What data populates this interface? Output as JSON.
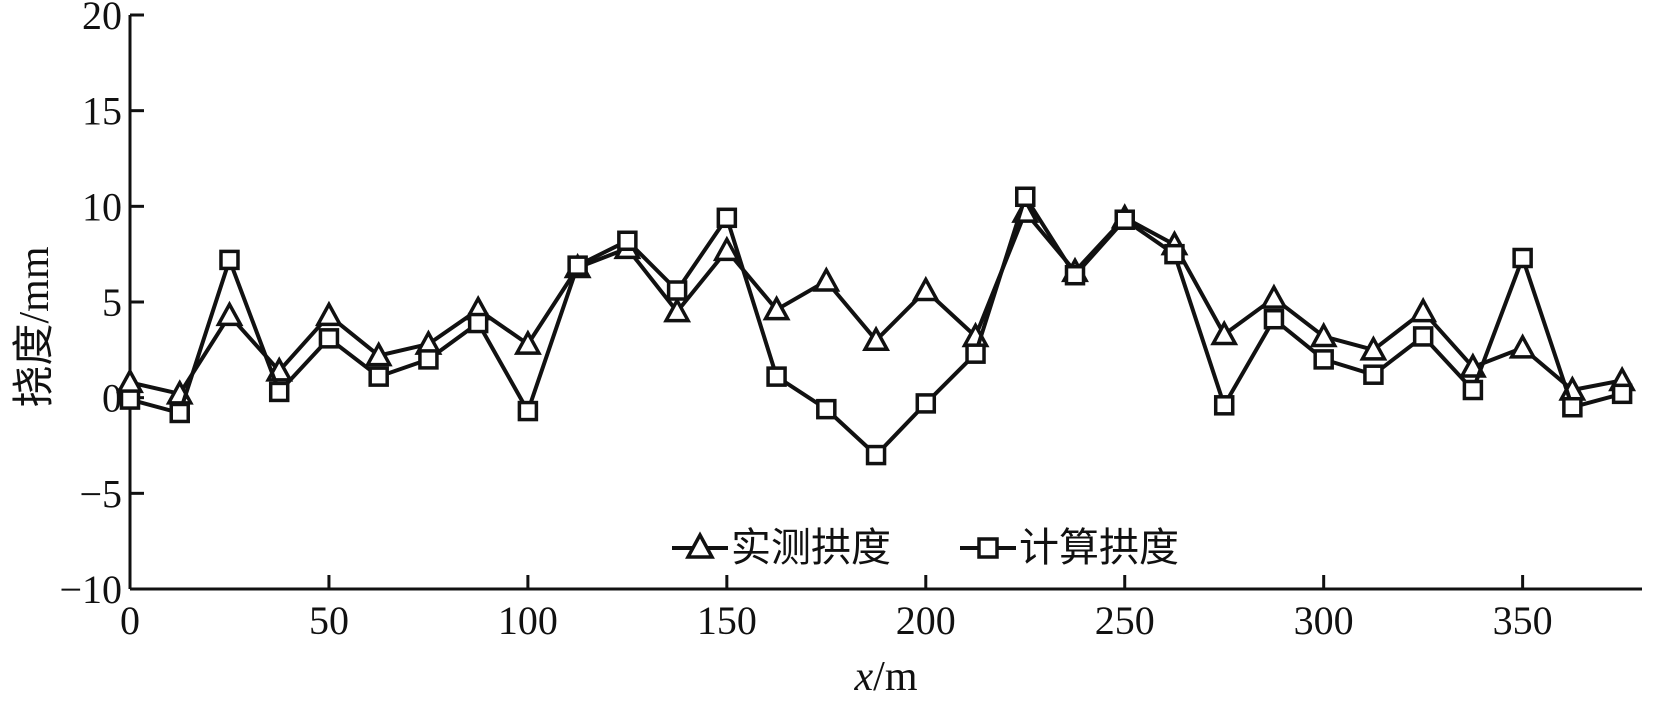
{
  "chart_data": {
    "type": "line",
    "title": "",
    "xlabel_var": "x",
    "xlabel_unit": "/m",
    "ylabel": "挠度/mm",
    "xlim": [
      0,
      380
    ],
    "ylim": [
      -10,
      20
    ],
    "xticks": [
      "0",
      "50",
      "100",
      "150",
      "200",
      "250",
      "300",
      "350"
    ],
    "yticks": [
      "20",
      "15",
      "10",
      "5",
      "0",
      "−5",
      "−10"
    ],
    "legend_position": "bottom-center",
    "grid": false,
    "x": [
      0,
      12.5,
      25,
      37.5,
      50,
      62.5,
      75,
      87.5,
      100,
      112.5,
      125,
      137.5,
      150,
      162.5,
      175,
      187.5,
      200,
      212.5,
      225,
      237.5,
      250,
      262.5,
      275,
      287.5,
      300,
      312.5,
      325,
      337.5,
      350,
      362.5,
      375
    ],
    "series": [
      {
        "name": "实测拱度",
        "marker": "triangle",
        "values": [
          0.8,
          0.2,
          4.3,
          1.4,
          4.3,
          2.2,
          2.8,
          4.6,
          2.8,
          6.8,
          7.8,
          4.5,
          7.7,
          4.6,
          6.1,
          3.0,
          5.6,
          3.2,
          9.7,
          6.6,
          9.4,
          8.0,
          3.3,
          5.2,
          3.2,
          2.5,
          4.5,
          1.6,
          2.6,
          0.4,
          0.9
        ]
      },
      {
        "name": "计算拱度",
        "marker": "square",
        "values": [
          -0.1,
          -0.8,
          7.2,
          0.3,
          3.1,
          1.1,
          2.0,
          3.9,
          -0.7,
          6.9,
          8.2,
          5.6,
          9.4,
          1.1,
          -0.6,
          -3.0,
          -0.3,
          2.3,
          10.5,
          6.4,
          9.3,
          7.5,
          -0.4,
          4.1,
          2.0,
          1.2,
          3.2,
          0.4,
          7.3,
          -0.5,
          0.2
        ]
      }
    ]
  }
}
